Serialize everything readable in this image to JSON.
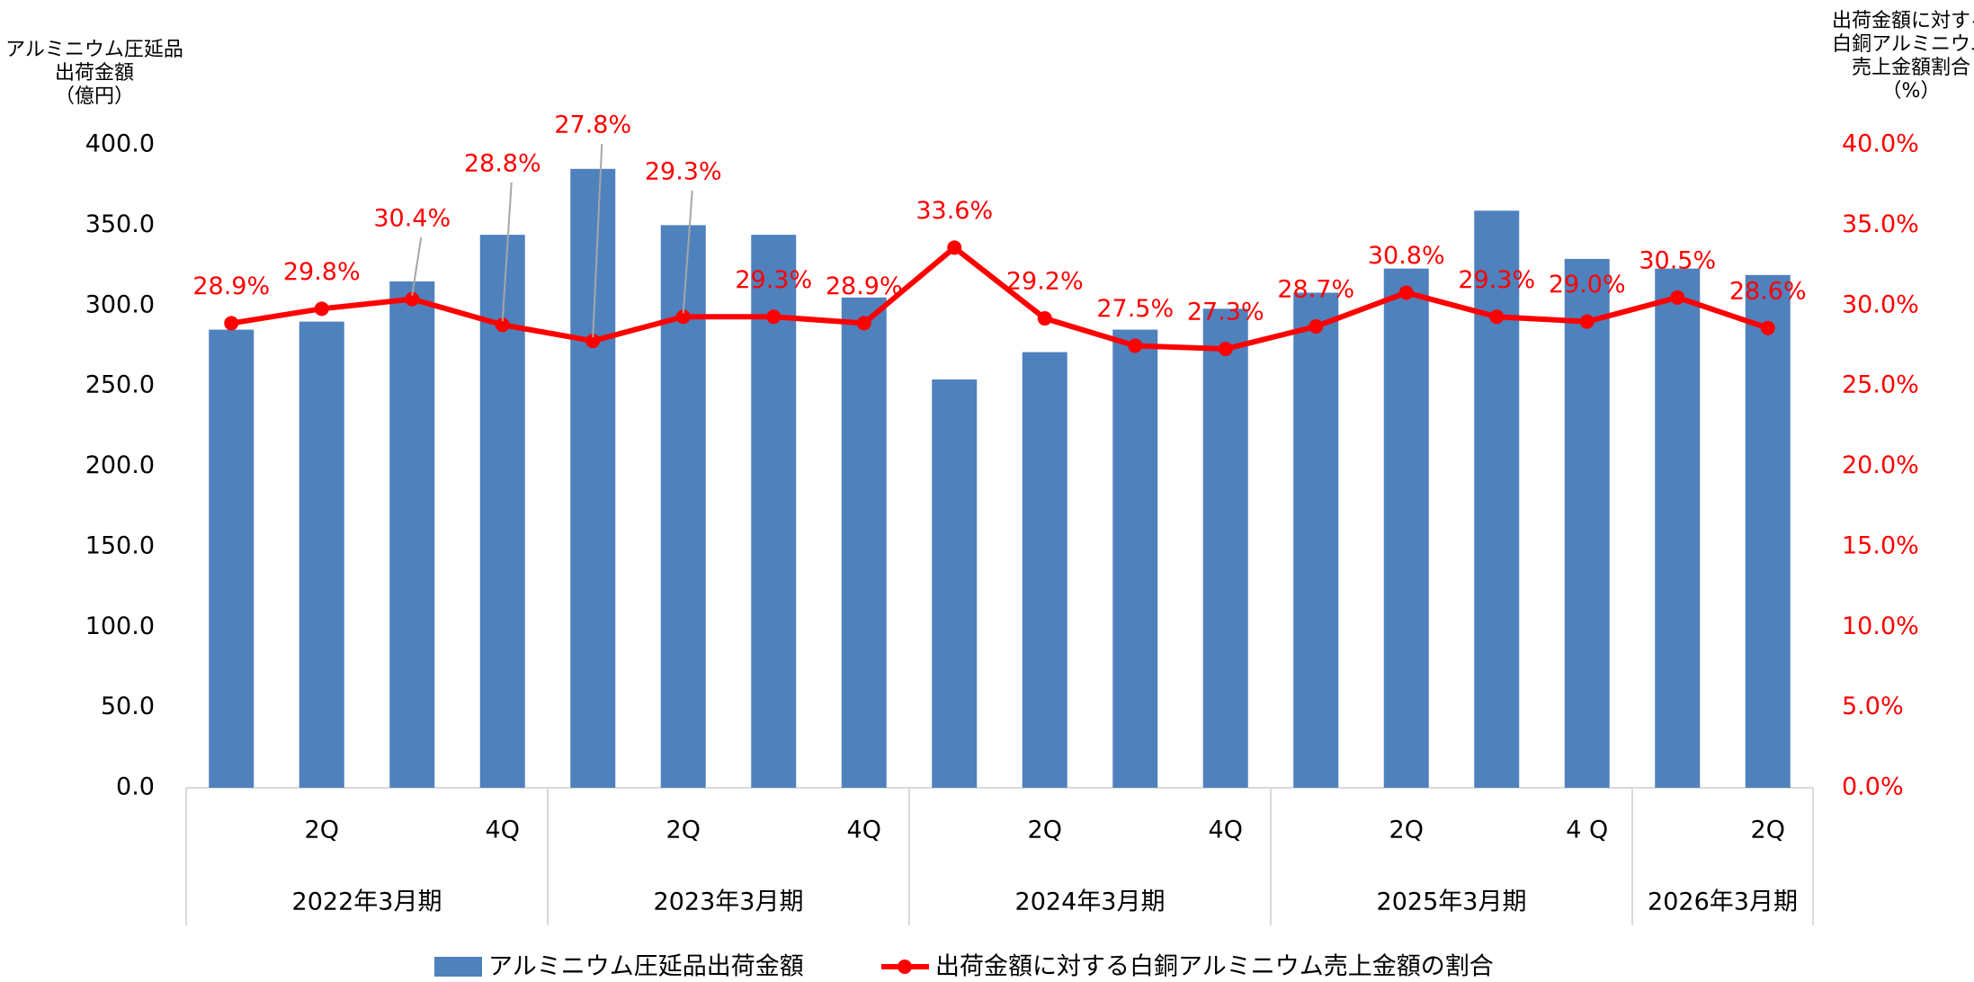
{
  "chart_data": {
    "type": "bar",
    "categories": [
      null,
      "2Q",
      null,
      "4Q",
      null,
      "2Q",
      null,
      "4Q",
      null,
      "2Q",
      null,
      "4Q",
      null,
      "2Q",
      null,
      "4 Q",
      null,
      "2Q"
    ],
    "groups": [
      "2022年3月期",
      "2023年3月期",
      "2024年3月期",
      "2025年3月期",
      "2026年3月期"
    ],
    "y_label": [
      "アルミニウム圧延品",
      "出荷金額",
      "（億円）"
    ],
    "y2_label": [
      "出荷金額に対する",
      "白銅アルミニウム",
      "売上金額割合",
      "（%）"
    ],
    "series": [
      {
        "name": "アルミニウム圧延品出荷金額",
        "type": "bar",
        "color": "#4f81bd",
        "values": [
          285,
          290,
          315,
          344,
          385,
          350,
          344,
          305,
          254,
          271,
          285,
          298,
          308,
          323,
          359,
          329,
          323,
          319
        ]
      },
      {
        "name": "出荷金額に対する白銅アルミニウム売上金額の割合",
        "type": "line",
        "axis": "y2",
        "color": "#ff0000",
        "values": [
          28.9,
          29.8,
          30.4,
          28.8,
          27.8,
          29.3,
          29.3,
          28.9,
          33.6,
          29.2,
          27.5,
          27.3,
          28.7,
          30.8,
          29.3,
          29.0,
          30.5,
          28.6
        ],
        "value_labels": [
          "28.9%",
          "29.8%",
          "30.4%",
          "28.8%",
          "27.8%",
          "29.3%",
          "29.3%",
          "28.9%",
          "33.6%",
          "29.2%",
          "27.5%",
          "27.3%",
          "28.7%",
          "30.8%",
          "29.3%",
          "29.0%",
          "30.5%",
          "28.6%"
        ]
      }
    ],
    "ylim": [
      0,
      400
    ],
    "yticks": [
      {
        "value": 0,
        "label": "0.0"
      },
      {
        "value": 50,
        "label": "50.0"
      },
      {
        "value": 100,
        "label": "100.0"
      },
      {
        "value": 150,
        "label": "150.0"
      },
      {
        "value": 200,
        "label": "200.0"
      },
      {
        "value": 250,
        "label": "250.0"
      },
      {
        "value": 300,
        "label": "300.0"
      },
      {
        "value": 350,
        "label": "350.0"
      },
      {
        "value": 400,
        "label": "400.0"
      }
    ],
    "y2lim": [
      0,
      40
    ],
    "y2ticks": [
      {
        "value": 0,
        "label": "0.0%"
      },
      {
        "value": 5,
        "label": "5.0%"
      },
      {
        "value": 10,
        "label": "10.0%"
      },
      {
        "value": 15,
        "label": "15.0%"
      },
      {
        "value": 20,
        "label": "20.0%"
      },
      {
        "value": 25,
        "label": "25.0%"
      },
      {
        "value": 30,
        "label": "30.0%"
      },
      {
        "value": 35,
        "label": "35.0%"
      },
      {
        "value": 40,
        "label": "40.0%"
      }
    ],
    "legend": "bottom"
  }
}
